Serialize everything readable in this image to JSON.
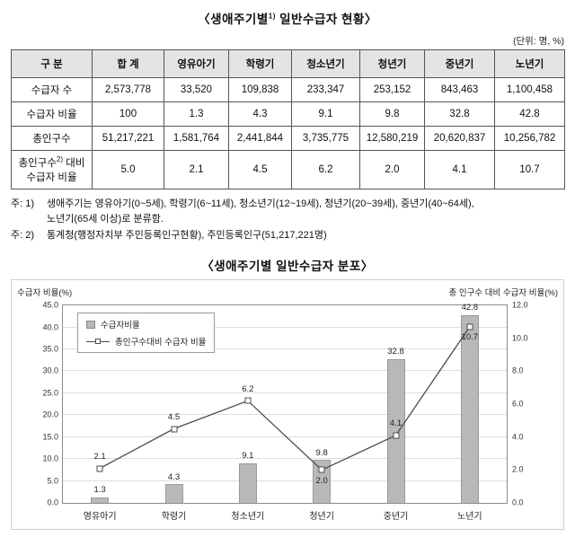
{
  "table_section": {
    "title_prefix": "〈생애주기별",
    "title_sup": "1)",
    "title_suffix": " 일반수급자 현황〉",
    "unit_note": "(단위: 명, %)",
    "columns": [
      "구 분",
      "합 계",
      "영유아기",
      "학령기",
      "청소년기",
      "청년기",
      "중년기",
      "노년기"
    ],
    "rows": [
      {
        "header": "수급자 수",
        "values": [
          "2,573,778",
          "33,520",
          "109,838",
          "233,347",
          "253,152",
          "843,463",
          "1,100,458"
        ]
      },
      {
        "header": "수급자 비율",
        "values": [
          "100",
          "1.3",
          "4.3",
          "9.1",
          "9.8",
          "32.8",
          "42.8"
        ]
      },
      {
        "header": "총인구수",
        "values": [
          "51,217,221",
          "1,581,764",
          "2,441,844",
          "3,735,775",
          "12,580,219",
          "20,620,837",
          "10,256,782"
        ]
      },
      {
        "header": "총인구수",
        "header_sup": "2)",
        "header_rest": " 대비 수급자 비율",
        "values": [
          "5.0",
          "2.1",
          "4.5",
          "6.2",
          "2.0",
          "4.1",
          "10.7"
        ]
      }
    ]
  },
  "notes": [
    {
      "label": "주: 1)",
      "lines": [
        "생애주기는 영유아기(0~5세), 학령기(6~11세), 청소년기(12~19세), 청년기(20~39세), 중년기(40~64세),",
        "노년기(65세 이상)로 분류함."
      ]
    },
    {
      "label": "주: 2)",
      "lines": [
        "통계청(행정자치부 주민등록인구현황), 주민등록인구(51,217,221명)"
      ]
    }
  ],
  "chart_section": {
    "title": "〈생애주기별 일반수급자 분포〉"
  },
  "chart_data": {
    "type": "bar+line",
    "title": "생애주기별 일반수급자 분포",
    "categories": [
      "영유아기",
      "학령기",
      "청소년기",
      "청년기",
      "중년기",
      "노년기"
    ],
    "series": [
      {
        "name": "수급자비율",
        "type": "bar",
        "axis": "left",
        "values": [
          1.3,
          4.3,
          9.1,
          9.8,
          32.8,
          42.8
        ]
      },
      {
        "name": "총인구수대비 수급자 비율",
        "type": "line",
        "axis": "right",
        "values": [
          2.1,
          4.5,
          6.2,
          2.0,
          4.1,
          10.7
        ]
      }
    ],
    "left_axis": {
      "label": "수급자 비율(%)",
      "min": 0,
      "max": 45,
      "step": 5
    },
    "right_axis": {
      "label": "총 인구수 대비 수급자 비율(%)",
      "min": 0,
      "max": 12,
      "step": 2
    },
    "grid": true,
    "legend_position": "top-left",
    "colors": {
      "bar": "#b8b8b8",
      "line": "#4d4d4d"
    }
  }
}
